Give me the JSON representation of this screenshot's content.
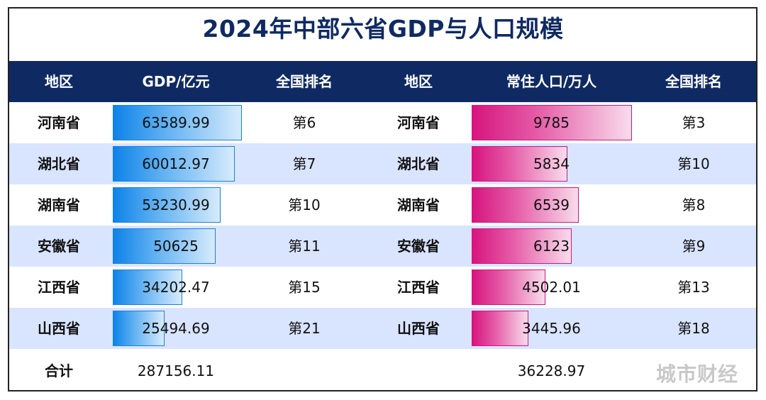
{
  "title": "2024年中部六省GDP与人口规模",
  "headers": [
    "地区",
    "GDP/亿元",
    "全国排名",
    "地区",
    "常住人口/万人",
    "全国排名"
  ],
  "chart_data": {
    "type": "table",
    "title": "2024年中部六省GDP与人口规模",
    "columns": [
      "地区",
      "GDP/亿元",
      "全国排名",
      "地区",
      "常住人口/万人",
      "全国排名"
    ],
    "rows": [
      {
        "region": "河南省",
        "gdp": 63589.99,
        "gdp_label": "63589.99",
        "gdp_rank": "第6",
        "region2": "河南省",
        "pop": 9785,
        "pop_label": "9785",
        "pop_rank": "第3"
      },
      {
        "region": "湖北省",
        "gdp": 60012.97,
        "gdp_label": "60012.97",
        "gdp_rank": "第7",
        "region2": "湖北省",
        "pop": 5834,
        "pop_label": "5834",
        "pop_rank": "第10"
      },
      {
        "region": "湖南省",
        "gdp": 53230.99,
        "gdp_label": "53230.99",
        "gdp_rank": "第10",
        "region2": "湖南省",
        "pop": 6539,
        "pop_label": "6539",
        "pop_rank": "第8"
      },
      {
        "region": "安徽省",
        "gdp": 50625,
        "gdp_label": "50625",
        "gdp_rank": "第11",
        "region2": "安徽省",
        "pop": 6123,
        "pop_label": "6123",
        "pop_rank": "第9"
      },
      {
        "region": "江西省",
        "gdp": 34202.47,
        "gdp_label": "34202.47",
        "gdp_rank": "第15",
        "region2": "江西省",
        "pop": 4502.01,
        "pop_label": "4502.01",
        "pop_rank": "第13"
      },
      {
        "region": "山西省",
        "gdp": 25494.69,
        "gdp_label": "25494.69",
        "gdp_rank": "第21",
        "region2": "山西省",
        "pop": 3445.96,
        "pop_label": "3445.96",
        "pop_rank": "第18"
      }
    ],
    "total": {
      "label": "合计",
      "gdp": "287156.11",
      "pop": "36228.97"
    },
    "bar_colors": {
      "gdp": "#0d83e8",
      "pop": "#d6157e"
    }
  },
  "watermark": "城市财经",
  "colors": {
    "title": "#0f2a63",
    "header_bg": "#0f2a63",
    "alt_row": "#d9e4ff"
  }
}
